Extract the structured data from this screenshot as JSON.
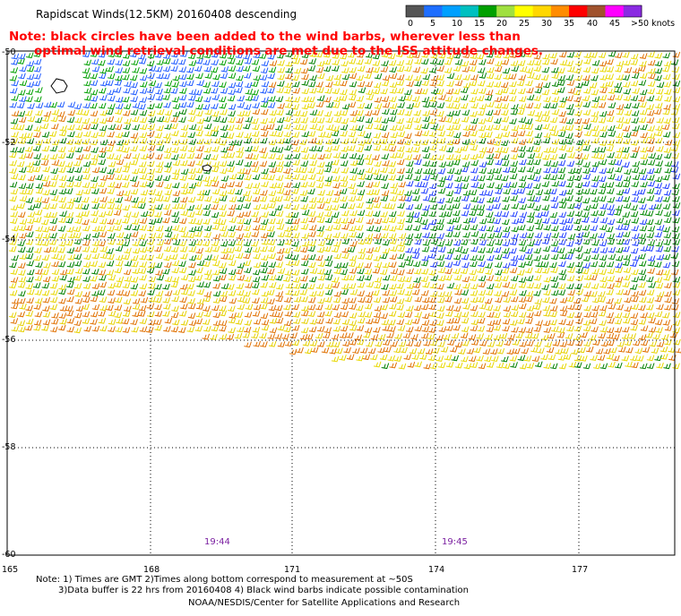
{
  "header": {
    "title": "Rapidscat Winds(12.5KM) 20160408 descending",
    "note_line1": "Note: black circles have been added to the wind barbs, wherever less than",
    "note_line2": "optimal wind retrieval conditions are met due to the ISS attitude changes."
  },
  "color_scale": {
    "labels": [
      "0",
      "5",
      "10",
      "15",
      "20",
      "25",
      "30",
      "35",
      "40",
      "45",
      ">50 knots"
    ],
    "colors": [
      "#555555",
      "#1e6eff",
      "#00a0ff",
      "#00c0c0",
      "#00a000",
      "#a0e040",
      "#ffff00",
      "#ffd700",
      "#ff8c00",
      "#ff0000",
      "#a0522d",
      "#ff00ff",
      "#8a2be2"
    ]
  },
  "map": {
    "latitude_labels": [
      "-50",
      "-52",
      "-54",
      "-56",
      "-58",
      "-60"
    ],
    "longitude_labels": [
      "165",
      "168",
      "171",
      "174",
      "177"
    ],
    "time_labels": [
      "19:44",
      "19:45"
    ]
  },
  "footer": {
    "line1": "Note: 1) Times are GMT 2)Times along bottom correspond to measurement at ~50S",
    "line2": "3)Data buffer is 22 hrs from 20160408 4) Black wind barbs indicate possible contamination",
    "line3": "NOAA/NESDIS/Center for Satellite Applications and Research"
  }
}
